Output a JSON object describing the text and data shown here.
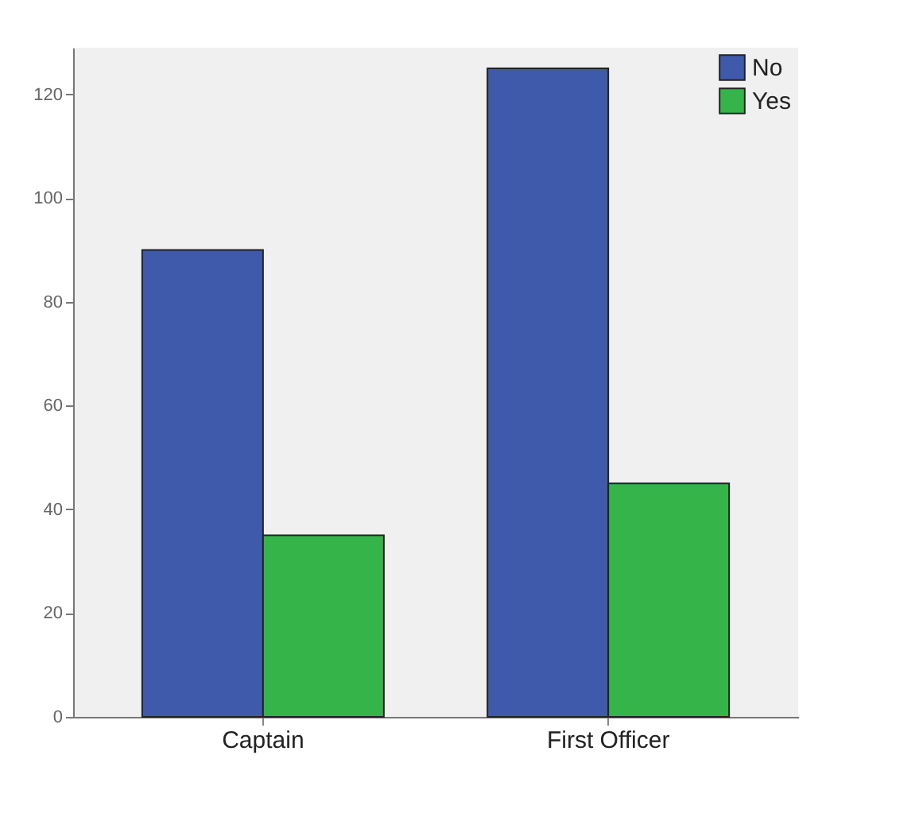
{
  "chart_data": {
    "type": "bar",
    "categories": [
      "Captain",
      "First Officer"
    ],
    "series": [
      {
        "name": "No",
        "color": "#3f5aab",
        "values": [
          90,
          125
        ]
      },
      {
        "name": "Yes",
        "color": "#35b44a",
        "values": [
          35,
          45
        ]
      }
    ],
    "ylim": [
      0,
      129
    ],
    "yticks": [
      0,
      20,
      40,
      60,
      80,
      100,
      120
    ],
    "grid": false,
    "legend": "top right"
  }
}
